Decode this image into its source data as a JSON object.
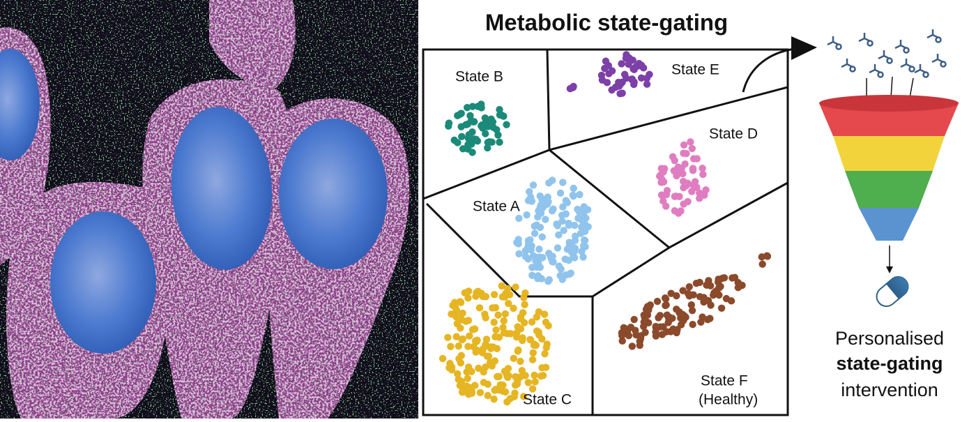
{
  "title": "Metabolic state-gating",
  "states": [
    "State A",
    "State B",
    "State C",
    "State D",
    "State E",
    "State F"
  ],
  "state_f_note": "(Healthy)",
  "output": {
    "line1": "Personalised",
    "line2": "state-gating",
    "line3": "intervention"
  }
}
